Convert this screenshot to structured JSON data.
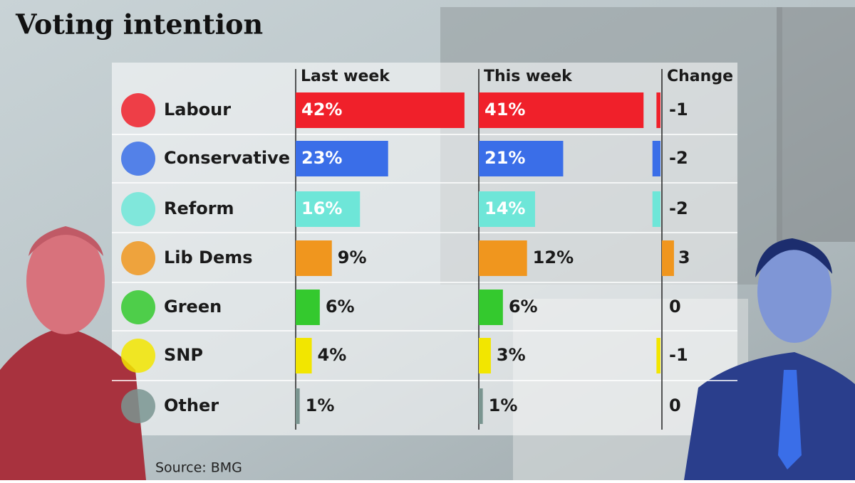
{
  "chart_data": {
    "type": "bar",
    "title": "Voting intention",
    "categories": [
      "Labour",
      "Conservative",
      "Reform",
      "Lib Dems",
      "Green",
      "SNP",
      "Other"
    ],
    "colors": [
      "#f0202a",
      "#3a6ee8",
      "#6ee6d8",
      "#f0961e",
      "#34c92e",
      "#f2e600",
      "#7a9590"
    ],
    "series": [
      {
        "name": "Last week",
        "values": [
          42,
          23,
          16,
          9,
          6,
          4,
          1
        ],
        "value_labels": [
          "42%",
          "23%",
          "16%",
          "9%",
          "6%",
          "4%",
          "1%"
        ]
      },
      {
        "name": "This week",
        "values": [
          41,
          21,
          14,
          12,
          6,
          3,
          1
        ],
        "value_labels": [
          "41%",
          "21%",
          "14%",
          "12%",
          "6%",
          "3%",
          "1%"
        ]
      }
    ],
    "change": {
      "name": "Change",
      "values": [
        -1,
        -2,
        -2,
        3,
        0,
        -1,
        0
      ]
    },
    "source": "Source: BMG"
  }
}
